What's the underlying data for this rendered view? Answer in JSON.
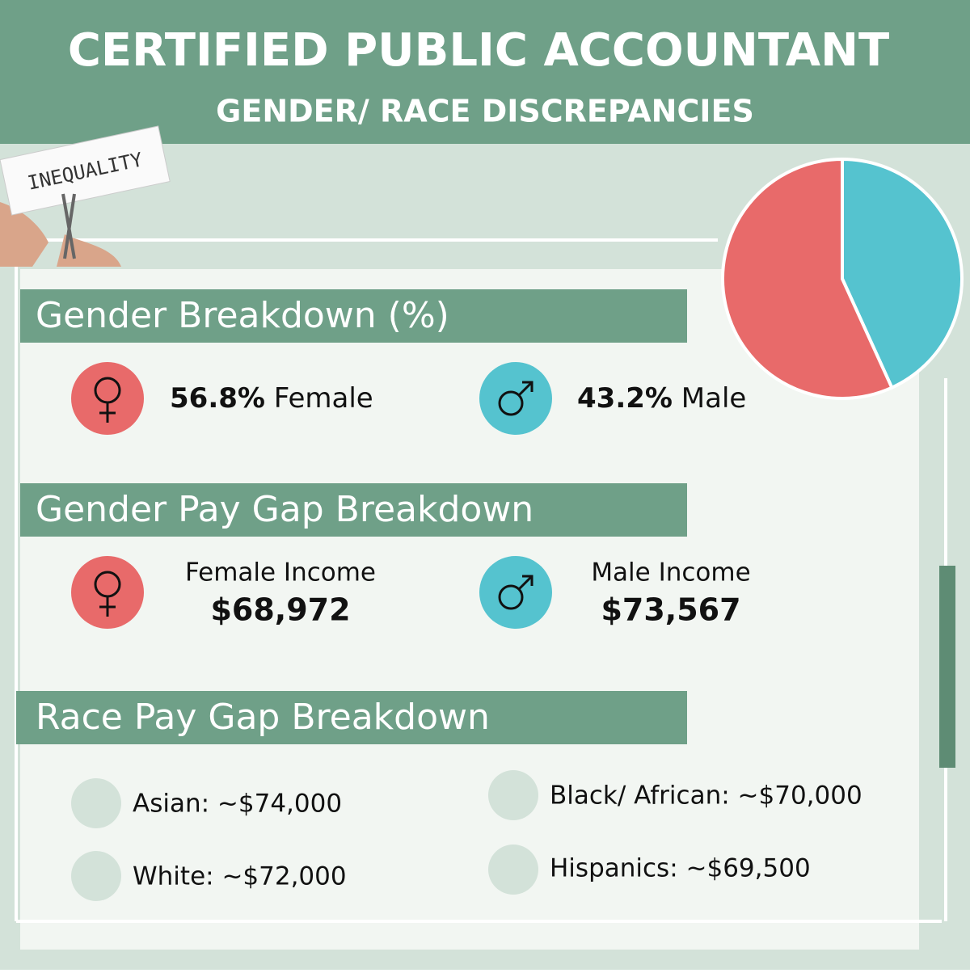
{
  "header": {
    "title": "CERTIFIED PUBLIC ACCOUNTANT",
    "subtitle": "GENDER/ RACE DISCREPANCIES"
  },
  "photo_text": "INEQUALITY",
  "gender": {
    "heading": "Gender Breakdown (%)",
    "items": [
      {
        "value": {
          "value": 56.8,
          "label": "56.8%"
        },
        "label": "Female",
        "color": "#e86a6a"
      },
      {
        "value": {
          "value": 43.2,
          "label": "43.2%"
        },
        "label": "Male",
        "color": "#55c3cf"
      }
    ]
  },
  "pay_gap": {
    "heading": "Gender Pay Gap Breakdown",
    "items": [
      {
        "label": "Female Income",
        "amount": "$68,972"
      },
      {
        "label": "Male Income",
        "amount": "$73,567"
      }
    ]
  },
  "race": {
    "heading": "Race Pay Gap Breakdown",
    "items": [
      "Asian: ~$74,000",
      "White: ~$72,000",
      "Black/ African: ~$70,000",
      "Hispanics: ~$69,500"
    ]
  }
}
